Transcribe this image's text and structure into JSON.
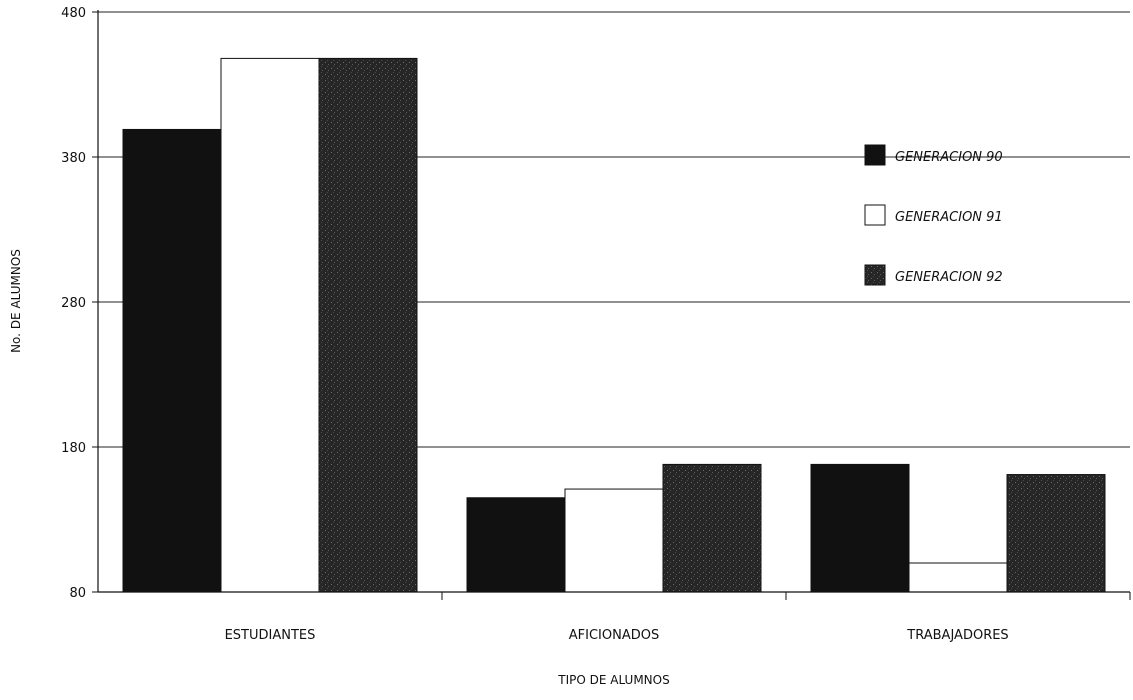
{
  "chart_data": {
    "type": "bar",
    "title": "",
    "xlabel": "TIPO DE ALUMNOS",
    "ylabel": "No. DE ALUMNOS",
    "ylim": [
      80,
      480
    ],
    "yticks": [
      "480",
      "380",
      "280",
      "180",
      "80"
    ],
    "grid": true,
    "legend_placement": "top-right",
    "categories": [
      "ESTUDIANTES",
      "AFICIONADOS",
      "TRABAJADORES"
    ],
    "series": [
      {
        "name": "GENERACION 90",
        "values": [
          399,
          145,
          168
        ],
        "color": "#111111"
      },
      {
        "name": "GENERACION 91",
        "values": [
          448,
          151,
          100
        ],
        "color": "#ffffff"
      },
      {
        "name": "GENERACION 92",
        "values": [
          448,
          168,
          161
        ],
        "color": "#2a2a2a"
      }
    ]
  }
}
